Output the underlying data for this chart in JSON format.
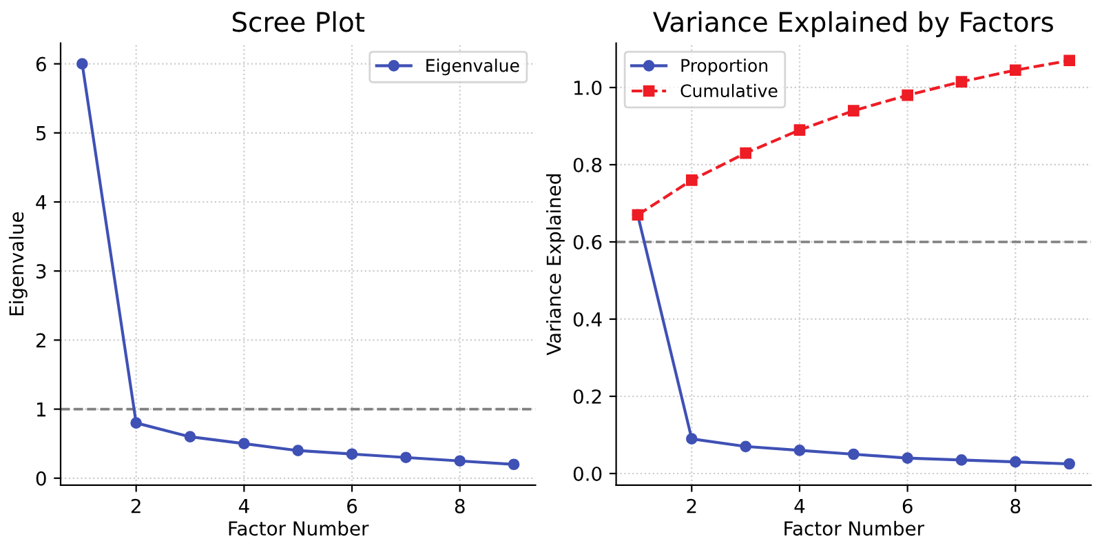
{
  "chart_data": [
    {
      "type": "line",
      "title": "Scree Plot",
      "xlabel": "Factor Number",
      "ylabel": "Eigenvalue",
      "x": [
        1,
        2,
        3,
        4,
        5,
        6,
        7,
        8,
        9
      ],
      "series": [
        {
          "name": "Eigenvalue",
          "color": "#3f51b5",
          "values": [
            6.0,
            0.8,
            0.6,
            0.5,
            0.4,
            0.35,
            0.3,
            0.25,
            0.2
          ],
          "marker": "circle",
          "line_style": "solid"
        }
      ],
      "xlim": [
        0.6,
        9.4
      ],
      "ylim": [
        -0.1,
        6.3
      ],
      "xticks": [
        2,
        4,
        6,
        8
      ],
      "yticks": [
        0,
        1,
        2,
        3,
        4,
        5,
        6
      ],
      "ref_lines": [
        {
          "axis": "y",
          "value": 1,
          "color": "#808080",
          "line_style": "dashed"
        }
      ],
      "grid": true,
      "legend": "top right"
    },
    {
      "type": "line",
      "title": "Variance Explained by Factors",
      "xlabel": "Factor Number",
      "ylabel": "Variance Explained",
      "x": [
        1,
        2,
        3,
        4,
        5,
        6,
        7,
        8,
        9
      ],
      "series": [
        {
          "name": "Proportion",
          "color": "#3f51b5",
          "values": [
            0.67,
            0.09,
            0.07,
            0.06,
            0.05,
            0.04,
            0.035,
            0.03,
            0.025
          ],
          "marker": "circle",
          "line_style": "solid"
        },
        {
          "name": "Cumulative",
          "color": "#ee1c25",
          "values": [
            0.67,
            0.76,
            0.83,
            0.89,
            0.94,
            0.98,
            1.015,
            1.045,
            1.07
          ],
          "marker": "square",
          "line_style": "dashed"
        }
      ],
      "xlim": [
        0.6,
        9.4
      ],
      "ylim": [
        -0.03,
        1.115
      ],
      "xticks": [
        2,
        4,
        6,
        8
      ],
      "yticks": [
        {
          "value": 0,
          "label": "0.0"
        },
        0.2,
        0.4,
        0.6,
        0.8,
        {
          "value": 1,
          "label": "1.0"
        }
      ],
      "ref_lines": [
        {
          "axis": "y",
          "value": 0.6,
          "color": "#808080",
          "line_style": "dashed"
        }
      ],
      "grid": true,
      "legend": "top left"
    }
  ]
}
